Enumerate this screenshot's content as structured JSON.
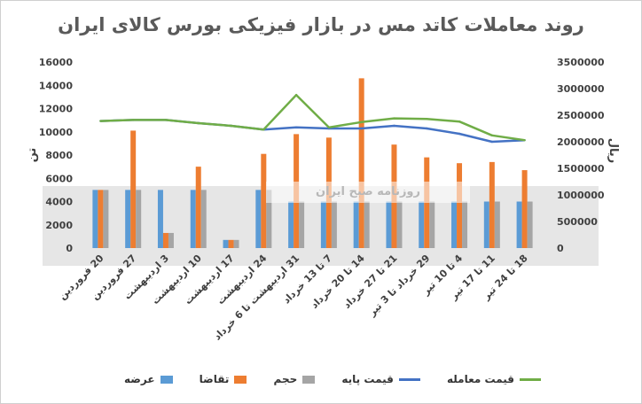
{
  "title": "روند معاملات کاتد مس در بازار فیزیکی بورس کالای ایران",
  "watermark_text": "روزنامه صبح ایران",
  "colors": {
    "supply": "#5b9bd5",
    "demand": "#ed7d31",
    "volume": "#a5a5a5",
    "base_price": "#4472c4",
    "trade_price": "#70ad47",
    "band": "#e6e6e6"
  },
  "chart_data": {
    "type": "bar",
    "title": "روند معاملات کاتد مس در بازار فیزیکی بورس کالای ایران",
    "ylabel_left": "تن",
    "ylabel_right": "ریال",
    "ylim_left": [
      0,
      16000
    ],
    "ylim_right": [
      0,
      3500000
    ],
    "yticks_left": [
      "16000",
      "14000",
      "12000",
      "10000",
      "8000",
      "6000",
      "4000",
      "2000",
      "0"
    ],
    "yticks_right": [
      "3500000",
      "3000000",
      "2500000",
      "2000000",
      "1500000",
      "1000000",
      "500000",
      "0"
    ],
    "categories": [
      "20 فروردین",
      "27 فروردین",
      "3 اردیبهشت",
      "10 اردیبهشت",
      "17 اردیبهشت",
      "24 اردیبهشت",
      "31 اردیبهشت تا 6 خرداد",
      "7 تا 13 خرداد",
      "14 تا 20 خرداد",
      "21 تا 27 خرداد",
      "29 خرداد تا 3 تیر",
      "4 تا 10 تیر",
      "11 تا 17 تیر",
      "18 تا 24 تیر"
    ],
    "series": [
      {
        "name": "عرضه",
        "kind": "bar",
        "axis": "left",
        "values": [
          5000,
          5000,
          5000,
          5000,
          700,
          5000,
          4000,
          4000,
          4000,
          4000,
          4000,
          4000,
          4000,
          4000
        ]
      },
      {
        "name": "تقاضا",
        "kind": "bar",
        "axis": "left",
        "values": [
          5000,
          10100,
          1300,
          7000,
          700,
          8100,
          9800,
          9500,
          14600,
          8900,
          7800,
          7300,
          7400,
          6700
        ]
      },
      {
        "name": "حجم",
        "kind": "bar",
        "axis": "left",
        "values": [
          5000,
          5000,
          1300,
          5000,
          700,
          5000,
          4000,
          4000,
          4000,
          4000,
          4000,
          4000,
          4000,
          4000
        ]
      },
      {
        "name": "قیمت پایه",
        "kind": "line",
        "axis": "right",
        "values": [
          2390000,
          2410000,
          2410000,
          2350000,
          2300000,
          2230000,
          2270000,
          2250000,
          2250000,
          2300000,
          2250000,
          2150000,
          2000000,
          2030000
        ]
      },
      {
        "name": "قیمت معامله",
        "kind": "line",
        "axis": "right",
        "values": [
          2390000,
          2410000,
          2410000,
          2350000,
          2300000,
          2230000,
          2880000,
          2270000,
          2370000,
          2440000,
          2430000,
          2380000,
          2120000,
          2030000
        ]
      }
    ],
    "legend_position": "bottom",
    "grid": true
  }
}
